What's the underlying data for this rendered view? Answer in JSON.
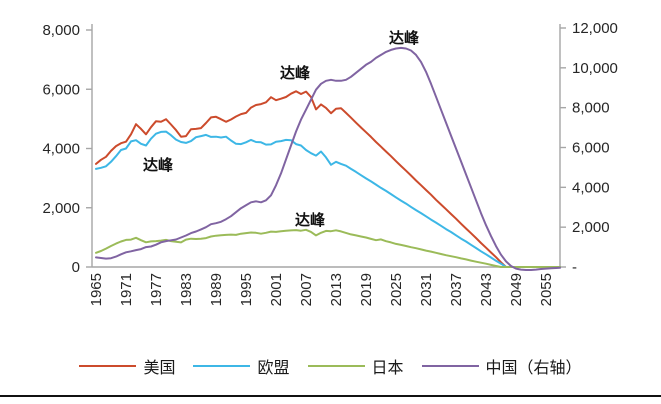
{
  "legend": {
    "items": [
      {
        "label": "美国",
        "color": "#CC4B2C"
      },
      {
        "label": "欧盟",
        "color": "#3DB7E6"
      },
      {
        "label": "日本",
        "color": "#9BBB59"
      },
      {
        "label": "中国（右轴）",
        "color": "#8064A2"
      }
    ]
  },
  "chart_data": {
    "type": "line",
    "title": "",
    "grid": false,
    "axis_color": "#A6A6A6",
    "start_year": 1965,
    "end_year": 2058,
    "x_ticks": [
      1965,
      1971,
      1977,
      1983,
      1989,
      1995,
      2001,
      2007,
      2013,
      2019,
      2025,
      2031,
      2037,
      2043,
      2049,
      2055
    ],
    "left_axis": {
      "values": [
        8000,
        6000,
        4000,
        2000,
        0
      ],
      "labels": [
        "8,000",
        "6,000",
        "4,000",
        "2,000",
        "0"
      ],
      "range": [
        0,
        8000
      ]
    },
    "right_axis": {
      "values": [
        12000,
        10000,
        8000,
        6000,
        4000,
        2000,
        0
      ],
      "labels": [
        "12,000",
        "10,000",
        "8,000",
        "6,000",
        "4,000",
        "2,000",
        "-"
      ],
      "range": [
        0,
        12000
      ]
    },
    "annotations": [
      {
        "text": "达峰",
        "axis": "left",
        "year": 1977.4,
        "value": 3440
      },
      {
        "text": "达峰",
        "axis": "left",
        "year": 2004.8,
        "value": 6550
      },
      {
        "text": "达峰",
        "axis": "left",
        "year": 2007.8,
        "value": 1590
      },
      {
        "text": "达峰",
        "axis": "right",
        "year": 2026.6,
        "value": 11500
      }
    ],
    "series": [
      {
        "id": "us",
        "name": "美国",
        "axis": "left",
        "color": "#CC4B2C",
        "values": [
          3480,
          3620,
          3720,
          3920,
          4080,
          4180,
          4230,
          4480,
          4820,
          4660,
          4480,
          4720,
          4920,
          4900,
          4990,
          4810,
          4620,
          4400,
          4420,
          4650,
          4660,
          4690,
          4860,
          5050,
          5070,
          4990,
          4900,
          4980,
          5080,
          5160,
          5200,
          5380,
          5470,
          5500,
          5560,
          5730,
          5630,
          5680,
          5740,
          5850,
          5930,
          5840,
          5920,
          5740,
          5320,
          5490,
          5370,
          5190,
          5340,
          5360,
          5200,
          5040,
          4870,
          4710,
          4550,
          4390,
          4220,
          4060,
          3900,
          3740,
          3570,
          3410,
          3250,
          3090,
          2920,
          2760,
          2600,
          2440,
          2270,
          2110,
          1950,
          1790,
          1630,
          1460,
          1300,
          1140,
          980,
          810,
          650,
          490,
          330,
          160,
          0,
          0,
          0,
          0,
          0,
          0,
          0,
          0,
          0,
          0,
          0,
          0
        ]
      },
      {
        "id": "eu",
        "name": "欧盟",
        "axis": "left",
        "color": "#3DB7E6",
        "values": [
          3310,
          3350,
          3400,
          3550,
          3740,
          3950,
          4000,
          4240,
          4280,
          4160,
          4100,
          4330,
          4500,
          4560,
          4570,
          4450,
          4300,
          4220,
          4190,
          4250,
          4380,
          4420,
          4460,
          4390,
          4400,
          4370,
          4400,
          4270,
          4160,
          4150,
          4210,
          4290,
          4220,
          4210,
          4130,
          4140,
          4230,
          4250,
          4290,
          4280,
          4150,
          4100,
          3950,
          3840,
          3760,
          3900,
          3700,
          3450,
          3550,
          3480,
          3420,
          3310,
          3210,
          3100,
          2990,
          2890,
          2780,
          2670,
          2570,
          2460,
          2350,
          2240,
          2140,
          2030,
          1920,
          1820,
          1710,
          1600,
          1500,
          1390,
          1280,
          1180,
          1070,
          960,
          860,
          750,
          640,
          530,
          430,
          320,
          210,
          110,
          0,
          0,
          0,
          0,
          0,
          0,
          0,
          0,
          0,
          0,
          0,
          0
        ]
      },
      {
        "id": "japan",
        "name": "日本",
        "axis": "left",
        "color": "#9BBB59",
        "values": [
          480,
          540,
          620,
          710,
          790,
          860,
          915,
          925,
          985,
          905,
          835,
          865,
          875,
          890,
          915,
          875,
          850,
          830,
          925,
          955,
          945,
          955,
          975,
          1030,
          1055,
          1075,
          1085,
          1095,
          1085,
          1125,
          1145,
          1165,
          1155,
          1125,
          1155,
          1195,
          1185,
          1205,
          1225,
          1235,
          1245,
          1225,
          1255,
          1185,
          1065,
          1155,
          1220,
          1210,
          1240,
          1200,
          1150,
          1100,
          1065,
          1030,
          995,
          950,
          905,
          930,
          870,
          830,
          780,
          745,
          710,
          670,
          635,
          595,
          555,
          520,
          480,
          440,
          400,
          365,
          330,
          290,
          255,
          215,
          180,
          145,
          110,
          70,
          35,
          0,
          0,
          0,
          0,
          0,
          0,
          0,
          0,
          0,
          0,
          0,
          0,
          0
        ]
      },
      {
        "id": "china",
        "name": "中国（右轴）",
        "axis": "right",
        "color": "#8064A2",
        "values": [
          480,
          450,
          420,
          440,
          520,
          640,
          740,
          790,
          850,
          900,
          1000,
          1030,
          1120,
          1240,
          1300,
          1340,
          1380,
          1480,
          1580,
          1700,
          1780,
          1890,
          2000,
          2150,
          2200,
          2270,
          2400,
          2550,
          2750,
          2950,
          3100,
          3250,
          3300,
          3250,
          3350,
          3600,
          4100,
          4700,
          5400,
          6100,
          6800,
          7400,
          7900,
          8400,
          8900,
          9200,
          9350,
          9400,
          9350,
          9350,
          9400,
          9550,
          9750,
          9950,
          10150,
          10300,
          10500,
          10650,
          10800,
          10900,
          10970,
          11000,
          10970,
          10870,
          10650,
          10300,
          9800,
          9200,
          8550,
          7900,
          7250,
          6600,
          5950,
          5300,
          4650,
          4000,
          3350,
          2700,
          2100,
          1550,
          1050,
          620,
          280,
          50,
          -80,
          -130,
          -150,
          -150,
          -130,
          -100,
          -80,
          -60,
          -50,
          -40
        ]
      }
    ]
  }
}
